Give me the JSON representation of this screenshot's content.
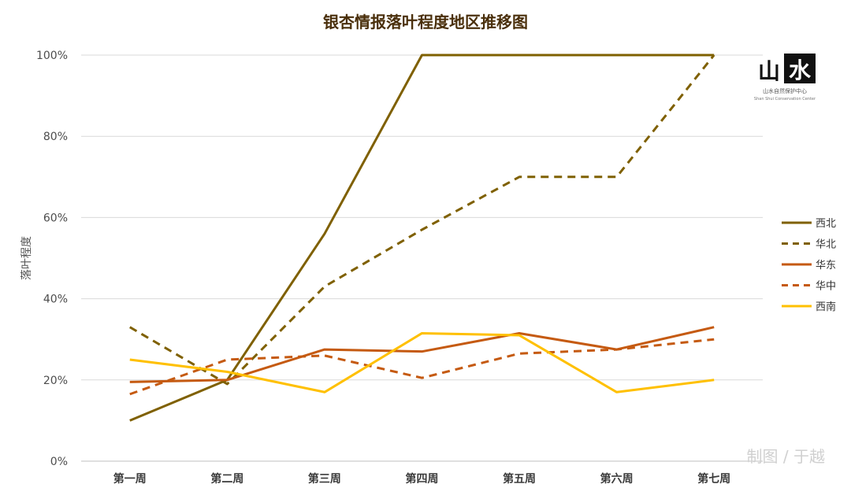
{
  "chart_data": {
    "type": "line",
    "title": "银杏情报落叶程度地区推移图",
    "ylabel": "落叶程度",
    "xlabel": "",
    "categories": [
      "第一周",
      "第二周",
      "第三周",
      "第四周",
      "第五周",
      "第六周",
      "第七周"
    ],
    "yticks": [
      "0%",
      "20%",
      "40%",
      "60%",
      "80%",
      "100%"
    ],
    "ylim": [
      0,
      100
    ],
    "grid": true,
    "legend_position": "right",
    "series": [
      {
        "name": "西北",
        "color": "#7f6000",
        "dash": "solid",
        "values": [
          10,
          20,
          56,
          100,
          100,
          100,
          100
        ]
      },
      {
        "name": "华北",
        "color": "#7f6000",
        "dash": "dashed",
        "values": [
          33,
          19,
          43,
          57,
          70,
          70,
          100
        ]
      },
      {
        "name": "华东",
        "color": "#c55a11",
        "dash": "solid",
        "values": [
          19.5,
          20,
          27.5,
          27,
          31.5,
          27.5,
          33
        ]
      },
      {
        "name": "华中",
        "color": "#c55a11",
        "dash": "dashed",
        "values": [
          16.5,
          25,
          26,
          20.5,
          26.5,
          27.5,
          30
        ]
      },
      {
        "name": "西南",
        "color": "#ffc000",
        "dash": "solid",
        "values": [
          25,
          22,
          17,
          31.5,
          31,
          17,
          20
        ]
      }
    ]
  },
  "logo": {
    "chars": [
      "山",
      "水"
    ],
    "name_cn": "山水自然保护中心",
    "name_en": "Shan Shui Conservation Center"
  },
  "watermark": "制图 / 于越"
}
